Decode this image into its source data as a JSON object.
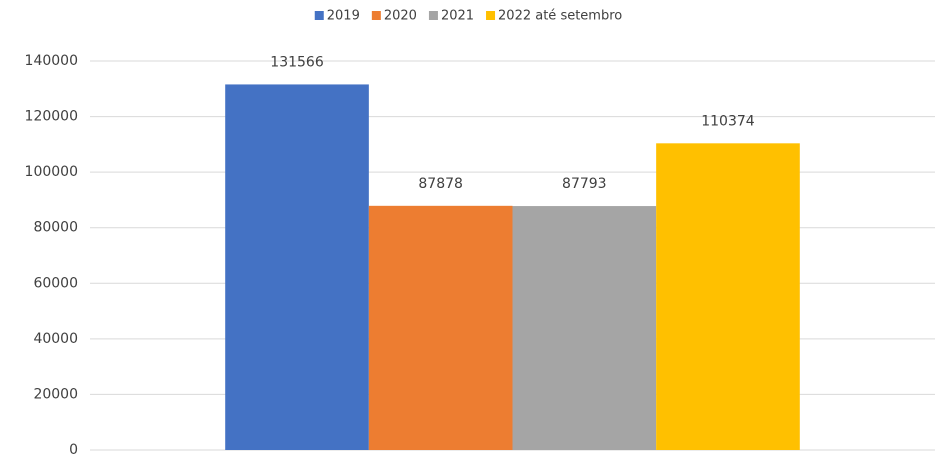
{
  "chart_data": {
    "type": "bar",
    "categories": [
      null
    ],
    "series": [
      {
        "name": "2019",
        "color": "#4472c4",
        "values": [
          131566
        ]
      },
      {
        "name": "2020",
        "color": "#ed7d31",
        "values": [
          87878
        ]
      },
      {
        "name": "2021",
        "color": "#a5a5a5",
        "values": [
          87793
        ]
      },
      {
        "name": "2022 até setembro",
        "color": "#ffc000",
        "values": [
          110374
        ]
      }
    ],
    "ylim": [
      0,
      140000
    ],
    "yticks": [
      0,
      20000,
      40000,
      60000,
      80000,
      100000,
      120000,
      140000
    ],
    "grid": true,
    "legend": "top"
  }
}
